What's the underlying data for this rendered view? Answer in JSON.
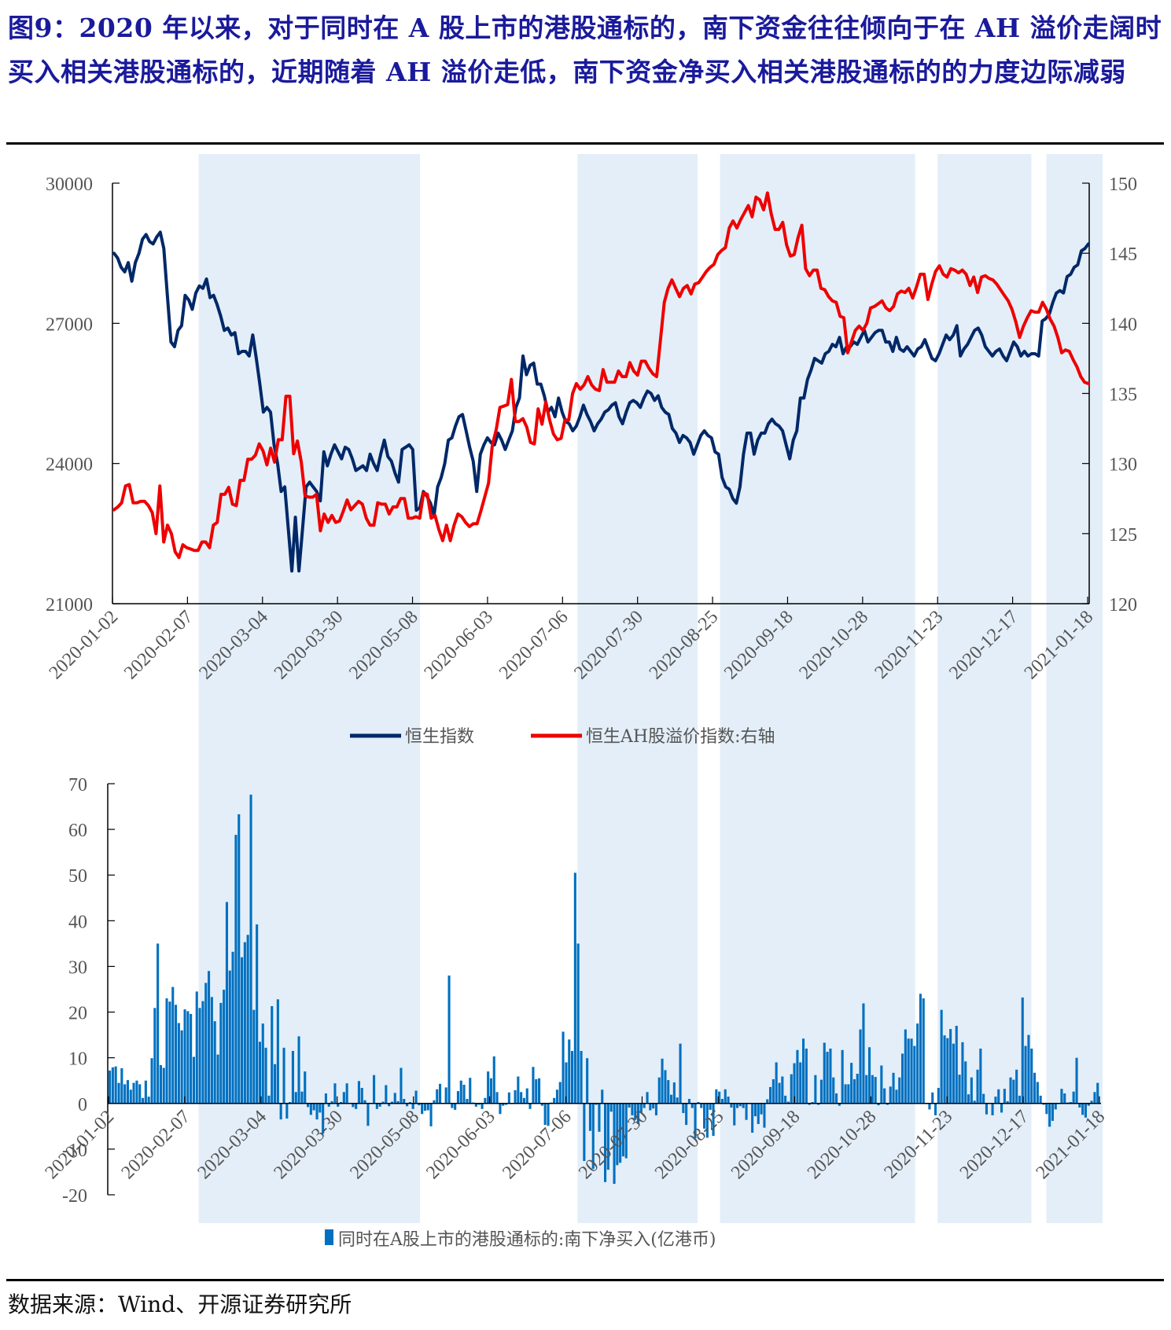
{
  "title": "图9：2020 年以来，对于同时在 A 股上市的港股通标的，南下资金往往倾向于在 AH 溢价走阔时买入相关港股通标的，近期随着 AH 溢价走低，南下资金净买入相关港股通标的的力度边际减弱",
  "source": "数据来源：Wind、开源证券研究所",
  "colors": {
    "title": "#1a1a9c",
    "hsi": "#002868",
    "ah": "#ee0000",
    "bar": "#0070c0",
    "shade": "#e3eef8"
  },
  "chart_data": [
    {
      "type": "line",
      "title": "",
      "xlabel": "",
      "x_tick_labels": [
        "2020-01-02",
        "2020-02-07",
        "2020-03-04",
        "2020-03-30",
        "2020-05-08",
        "2020-06-03",
        "2020-07-06",
        "2020-07-30",
        "2020-08-25",
        "2020-09-18",
        "2020-10-28",
        "2020-11-23",
        "2020-12-17",
        "2021-01-18"
      ],
      "ylim_left": [
        21000,
        30000
      ],
      "yticks_left": [
        21000,
        24000,
        27000,
        30000
      ],
      "ylim_right": [
        120,
        150
      ],
      "yticks_right": [
        120,
        125,
        130,
        135,
        140,
        145,
        150
      ],
      "legend_position": "bottom-center",
      "shaded_periods_by_tick_index": [
        [
          1.15,
          4.1
        ],
        [
          6.2,
          7.8
        ],
        [
          8.1,
          10.7
        ],
        [
          11.0,
          12.25
        ],
        [
          12.45,
          13.2
        ]
      ],
      "series": [
        {
          "name": "恒生指数",
          "axis": "left",
          "values": [
            28500,
            28400,
            28200,
            28100,
            28300,
            27900,
            28300,
            28500,
            28800,
            28900,
            28750,
            28700,
            28850,
            28950,
            28600,
            27600,
            26600,
            26500,
            26850,
            26950,
            27600,
            27500,
            27300,
            27650,
            27800,
            27750,
            27950,
            27550,
            27600,
            27400,
            27150,
            26850,
            26900,
            26750,
            26800,
            26350,
            26400,
            26400,
            26300,
            26750,
            26250,
            25700,
            25100,
            25200,
            25100,
            24400,
            24000,
            23400,
            23500,
            22600,
            21700,
            22850,
            21700,
            22600,
            23500,
            23600,
            23500,
            23400,
            23200,
            24250,
            23950,
            24200,
            24400,
            24250,
            24100,
            24350,
            24300,
            24100,
            23850,
            23900,
            23950,
            23850,
            24200,
            24000,
            23850,
            24200,
            24500,
            24150,
            24050,
            23800,
            23600,
            24300,
            24350,
            24400,
            24300,
            23000,
            23050,
            23400,
            23300,
            23150,
            22900,
            23500,
            23700,
            24000,
            24500,
            24550,
            24800,
            25000,
            25050,
            24700,
            24350,
            24050,
            23400,
            24200,
            24400,
            24550,
            24450,
            24400,
            24650,
            24500,
            24300,
            24500,
            24700,
            25200,
            25400,
            26300,
            25900,
            26100,
            26150,
            25700,
            25700,
            25450,
            25100,
            25200,
            25000,
            25400,
            25100,
            24900,
            24850,
            24700,
            24800,
            25000,
            25250,
            25050,
            24900,
            24700,
            24850,
            24950,
            25100,
            25150,
            25250,
            25300,
            25000,
            24850,
            25100,
            25300,
            25350,
            25300,
            25200,
            25400,
            25550,
            25500,
            25350,
            25450,
            25200,
            25100,
            25050,
            24750,
            24650,
            24450,
            24600,
            24550,
            24450,
            24200,
            24400,
            24600,
            24700,
            24600,
            24550,
            24250,
            24200,
            23700,
            23500,
            23450,
            23250,
            23150,
            23500,
            24200,
            24650,
            24650,
            24200,
            24500,
            24650,
            24650,
            24850,
            24950,
            24850,
            24800,
            24700,
            24400,
            24100,
            24500,
            24700,
            25400,
            25400,
            25800,
            26000,
            26250,
            26200,
            26150,
            26350,
            26400,
            26550,
            26500,
            26700,
            26350,
            26500,
            26500,
            26600,
            26550,
            26700,
            26850,
            26600,
            26700,
            26800,
            26850,
            26850,
            26600,
            26600,
            26400,
            26700,
            26450,
            26400,
            26500,
            26400,
            26300,
            26450,
            26500,
            26650,
            26450,
            26250,
            26200,
            26350,
            26550,
            26750,
            26650,
            26750,
            26950,
            26300,
            26450,
            26550,
            26700,
            26850,
            26900,
            26750,
            26500,
            26400,
            26300,
            26400,
            26450,
            26300,
            26200,
            26400,
            26600,
            26500,
            26300,
            26400,
            26300,
            26350,
            26350,
            26300,
            27050,
            27100,
            27200,
            27450,
            27650,
            27700,
            27650,
            28000,
            28050,
            28200,
            28250,
            28550,
            28600,
            28700
          ],
          "note": "Hang Seng Index daily close, approximate readout"
        },
        {
          "name": "恒生AH股溢价指数:右轴",
          "axis": "right",
          "values": [
            126.7,
            126.9,
            127.2,
            128.4,
            128.5,
            127.2,
            127.2,
            127.3,
            127.3,
            127.0,
            126.5,
            125.0,
            128.4,
            124.4,
            125.6,
            125.0,
            123.7,
            123.3,
            124.2,
            124.0,
            123.9,
            123.8,
            123.8,
            124.4,
            124.4,
            124.0,
            125.6,
            125.8,
            127.8,
            127.8,
            128.3,
            127.1,
            127.0,
            128.8,
            128.8,
            130.3,
            130.3,
            130.6,
            131.4,
            130.9,
            129.9,
            131.1,
            130.1,
            131.7,
            131.7,
            134.8,
            134.8,
            130.7,
            131.6,
            130.1,
            127.7,
            127.6,
            127.6,
            127.8,
            125.2,
            126.4,
            125.8,
            126.3,
            125.8,
            125.9,
            126.6,
            127.4,
            126.7,
            127.0,
            127.3,
            127.1,
            126.1,
            125.6,
            125.6,
            127.2,
            127.1,
            127.1,
            126.4,
            126.9,
            126.9,
            127.5,
            127.5,
            126.1,
            126.1,
            126.2,
            126.1,
            127.9,
            127.8,
            126.1,
            126.3,
            125.3,
            124.5,
            125.6,
            124.5,
            125.6,
            126.4,
            126.2,
            125.8,
            125.5,
            125.7,
            125.7,
            126.6,
            127.6,
            128.6,
            131.3,
            132.4,
            134.0,
            134.1,
            134.2,
            136.0,
            133.0,
            133.0,
            133.2,
            132.6,
            131.5,
            131.4,
            133.9,
            132.8,
            134.4,
            133.1,
            132.1,
            131.7,
            131.8,
            133.1,
            133.1,
            135.0,
            135.7,
            135.3,
            135.6,
            136.2,
            135.6,
            135.3,
            135.2,
            136.7,
            135.8,
            135.8,
            135.8,
            136.6,
            136.2,
            136.2,
            137.2,
            136.6,
            136.3,
            137.3,
            137.3,
            136.8,
            136.4,
            136.2,
            138.8,
            141.5,
            142.5,
            143.1,
            142.5,
            141.9,
            142.5,
            142.7,
            142.1,
            142.8,
            142.9,
            143.3,
            143.7,
            144.0,
            144.2,
            144.9,
            145.2,
            145.4,
            146.8,
            147.3,
            146.8,
            147.4,
            147.9,
            148.4,
            147.6,
            149.0,
            148.8,
            148.1,
            149.3,
            147.8,
            146.7,
            146.7,
            147.2,
            145.6,
            144.8,
            144.9,
            146.1,
            147.0,
            143.9,
            143.4,
            143.8,
            143.8,
            142.5,
            142.4,
            141.9,
            141.6,
            141.5,
            140.5,
            140.4,
            137.9,
            138.7,
            139.5,
            139.8,
            139.5,
            140.0,
            141.1,
            141.2,
            141.4,
            141.6,
            141.1,
            140.9,
            141.2,
            142.1,
            142.3,
            142.2,
            142.5,
            141.8,
            142.6,
            143.5,
            143.5,
            141.7,
            142.8,
            143.7,
            144.1,
            143.5,
            143.3,
            143.9,
            143.8,
            143.6,
            143.8,
            143.5,
            142.7,
            143.3,
            142.2,
            143.3,
            143.4,
            143.2,
            143.1,
            142.8,
            142.4,
            142.0,
            141.6,
            141.0,
            140.1,
            139.0,
            139.8,
            140.4,
            140.9,
            140.8,
            140.8,
            141.5,
            141.0,
            140.3,
            139.8,
            139.0,
            137.9,
            138.1,
            138.0,
            137.4,
            136.9,
            136.2,
            135.8,
            135.7
          ],
          "note": "Hang Seng AH Premium Index, approximate readout"
        }
      ]
    },
    {
      "type": "bar",
      "title": "",
      "xlabel": "",
      "x_tick_labels": [
        "2020-01-02",
        "2020-02-07",
        "2020-03-04",
        "2020-03-30",
        "2020-05-08",
        "2020-06-03",
        "2020-07-06",
        "2020-07-30",
        "2020-08-25",
        "2020-09-18",
        "2020-10-28",
        "2020-11-23",
        "2020-12-17",
        "2021-01-18"
      ],
      "ylim": [
        -20,
        70
      ],
      "yticks": [
        -20,
        -10,
        0,
        10,
        20,
        30,
        40,
        50,
        60,
        70
      ],
      "legend_position": "bottom-center",
      "shaded_periods_by_tick_index": [
        [
          1.15,
          4.1
        ],
        [
          6.2,
          7.8
        ],
        [
          8.1,
          10.7
        ],
        [
          11.0,
          12.25
        ],
        [
          12.45,
          13.2
        ]
      ],
      "series": [
        {
          "name": "同时在A股上市的港股通标的:南下净买入(亿港币)",
          "values": [
            7.2,
            7.9,
            8.1,
            4.5,
            7.7,
            4.2,
            5.1,
            3.0,
            4.5,
            5.0,
            4.2,
            1.2,
            5.0,
            1.5,
            9.9,
            20.9,
            35.0,
            8.4,
            7.8,
            23.0,
            22.3,
            25.5,
            21.6,
            17.6,
            16.0,
            20.6,
            20.2,
            19.6,
            10.2,
            24.5,
            20.9,
            22.4,
            26.4,
            29.0,
            23.3,
            18.0,
            10.7,
            22.0,
            24.9,
            44.1,
            29.1,
            33.2,
            58.8,
            63.3,
            32.0,
            35.3,
            36.9,
            67.6,
            20.5,
            39.2,
            13.5,
            17.5,
            12.2,
            1.7,
            21.3,
            8.6,
            22.8,
            -3.5,
            12.2,
            -3.3,
            0.3,
            11.5,
            2.5,
            14.7,
            2.6,
            7.0,
            -0.8,
            -2.5,
            -1.5,
            -3.5,
            -2.0,
            -6.6,
            2.2,
            -0.7,
            0.5,
            4.4,
            -0.7,
            0.3,
            2.5,
            4.4,
            0.1,
            -0.8,
            -1.2,
            4.9,
            3.4,
            0.7,
            -4.9,
            0.1,
            6.2,
            -1.2,
            -0.7,
            0.4,
            4.0,
            -0.6,
            0.4,
            2.3,
            0.5,
            7.8,
            1.0,
            -0.6,
            0.3,
            -1.2,
            2.8,
            -0.4,
            -2.3,
            -1.6,
            -1.5,
            -5.0,
            0.7,
            3.1,
            4.3,
            0.1,
            3.5,
            28.0,
            -1.0,
            -1.4,
            2.7,
            5.0,
            4.1,
            1.0,
            5.6,
            0.2,
            -0.7,
            -0.3,
            -1.2,
            1.2,
            7.0,
            5.5,
            10.3,
            2.5,
            -2.3,
            -0.5,
            -0.3,
            2.4,
            0.0,
            2.9,
            5.9,
            2.5,
            1.2,
            3.3,
            -1.2,
            8.0,
            5.3,
            5.5,
            -0.5,
            -4.7,
            -4.9,
            0.2,
            1.2,
            3.0,
            4.7,
            15.7,
            9.0,
            14.0,
            11.5,
            50.5,
            35.0,
            11.5,
            -12.6,
            9.9,
            -6.0,
            -14.3,
            -0.3,
            -6.2,
            3.0,
            -17.2,
            -14.5,
            -1.8,
            -17.6,
            -13.5,
            -13.0,
            -11.6,
            -12.0,
            -0.9,
            -2.6,
            -3.6,
            -4.5,
            -2.0,
            -1.0,
            2.5,
            -1.5,
            -1.1,
            -2.6,
            5.7,
            9.8,
            7.3,
            5.1,
            1.9,
            4.6,
            1.3,
            13.1,
            -2.1,
            -4.7,
            1.0,
            -1.0,
            -7.6,
            0.3,
            -1.0,
            -5.5,
            -7.5,
            -1.4,
            -7.1,
            3.1,
            2.6,
            1.0,
            3.1,
            1.5,
            -0.9,
            -4.8,
            -1.0,
            -0.6,
            -1.0,
            -3.6,
            0.0,
            -6.4,
            -2.8,
            -4.5,
            -2.4,
            -5.3,
            0.9,
            3.6,
            5.3,
            9.0,
            4.5,
            5.9,
            1.7,
            0.4,
            6.4,
            8.8,
            11.7,
            9.0,
            14.2,
            12.0,
            -0.3,
            0.3,
            6.2,
            -0.3,
            5.2,
            13.3,
            11.3,
            12.0,
            5.7,
            2.2,
            -0.5,
            11.7,
            4.2,
            4.2,
            8.9,
            5.3,
            6.5,
            16.2,
            21.9,
            6.2,
            12.3,
            6.2,
            5.8,
            -0.4,
            8.3,
            3.3,
            -0.3,
            3.7,
            6.7,
            3.0,
            5.7,
            10.9,
            16.2,
            14.2,
            14.2,
            12.6,
            17.5,
            24.0,
            23.0,
            -0.1,
            -1.3,
            2.4,
            -2.6,
            3.4,
            20.5,
            14.9,
            14.3,
            16.3,
            13.1,
            17.0,
            6.3,
            13.4,
            9.2,
            2.0,
            5.7,
            0.6,
            7.4,
            12.0,
            2.1,
            -2.4,
            0.1,
            -2.6,
            1.5,
            3.1,
            -2.0,
            3.2,
            0.5,
            5.7,
            5.2,
            7.4,
            1.7,
            23.2,
            12.6,
            15.0,
            12.0,
            6.7,
            4.7,
            1.7,
            -0.3,
            -2.3,
            -5.1,
            -3.8,
            -1.3,
            -0.1,
            3.2,
            2.2,
            0.2,
            0.3,
            2.6,
            10.0,
            -0.9,
            -2.5,
            -3.1,
            -0.5,
            0.6,
            2.5,
            4.5
          ],
          "note": "Approximate daily readout; many bars are dense and estimated"
        }
      ]
    }
  ]
}
